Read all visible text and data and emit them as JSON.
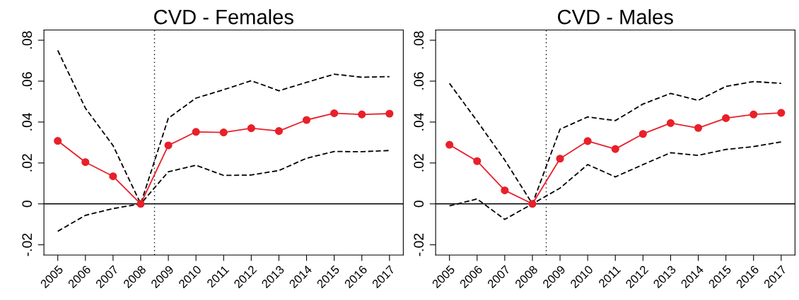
{
  "chart_data": [
    {
      "type": "line",
      "title": "CVD - Females",
      "x": [
        2005,
        2006,
        2007,
        2008,
        2009,
        2010,
        2011,
        2012,
        2013,
        2014,
        2015,
        2016,
        2017
      ],
      "xlim": [
        2004.5,
        2017.5
      ],
      "xticks": [
        2005,
        2006,
        2007,
        2008,
        2009,
        2010,
        2011,
        2012,
        2013,
        2014,
        2015,
        2016,
        2017
      ],
      "ylim": [
        -0.025,
        0.085
      ],
      "yticks": [
        {
          "value": -0.02,
          "label": "-.02"
        },
        0,
        {
          "value": 0.02,
          "label": ".02"
        },
        {
          "value": 0.04,
          "label": ".04"
        },
        {
          "value": 0.06,
          "label": ".06"
        },
        {
          "value": 0.08,
          "label": ".08"
        }
      ],
      "grid": false,
      "series": [
        {
          "color": "#000000",
          "line_style": "dashed",
          "marker": "none",
          "values": [
            0.075,
            0.0468,
            0.0285,
            0,
            0.0419,
            0.0517,
            0.0558,
            0.0602,
            0.0553,
            0.0594,
            0.0634,
            0.0619,
            0.0622
          ]
        },
        {
          "color": "#000000",
          "line_style": "dashed",
          "marker": "none",
          "values": [
            -0.0134,
            -0.0056,
            -0.0023,
            0,
            0.0157,
            0.0189,
            0.0139,
            0.0141,
            0.0163,
            0.0223,
            0.0256,
            0.0255,
            0.0261
          ]
        },
        {
          "color": "#e8202a",
          "line_style": "solid",
          "marker": "circle",
          "values": [
            0.0308,
            0.0204,
            0.0135,
            0,
            0.0286,
            0.0352,
            0.0349,
            0.037,
            0.0356,
            0.041,
            0.0443,
            0.0437,
            0.0441
          ]
        }
      ],
      "ref_lines": [
        {
          "axis": "y",
          "value": 0,
          "color": "#000000",
          "line_style": "solid"
        },
        {
          "axis": "x",
          "value": 2008.5,
          "color": "#000000",
          "line_style": "dotted"
        }
      ]
    },
    {
      "type": "line",
      "title": "CVD - Males",
      "x": [
        2005,
        2006,
        2007,
        2008,
        2009,
        2010,
        2011,
        2012,
        2013,
        2014,
        2015,
        2016,
        2017
      ],
      "xlim": [
        2004.5,
        2017.5
      ],
      "xticks": [
        2005,
        2006,
        2007,
        2008,
        2009,
        2010,
        2011,
        2012,
        2013,
        2014,
        2015,
        2016,
        2017
      ],
      "ylim": [
        -0.025,
        0.085
      ],
      "yticks": [
        {
          "value": -0.02,
          "label": "-.02"
        },
        0,
        {
          "value": 0.02,
          "label": ".02"
        },
        {
          "value": 0.04,
          "label": ".04"
        },
        {
          "value": 0.06,
          "label": ".06"
        },
        {
          "value": 0.08,
          "label": ".08"
        }
      ],
      "grid": false,
      "series": [
        {
          "color": "#000000",
          "line_style": "dashed",
          "marker": "none",
          "values": [
            0.0589,
            0.0405,
            0.0214,
            0,
            0.0365,
            0.0425,
            0.0407,
            0.0488,
            0.054,
            0.0506,
            0.0574,
            0.0598,
            0.0589
          ]
        },
        {
          "color": "#000000",
          "line_style": "dashed",
          "marker": "none",
          "values": [
            -0.001,
            0.0024,
            -0.0076,
            0,
            0.0077,
            0.0192,
            0.0132,
            0.0192,
            0.025,
            0.0237,
            0.0266,
            0.028,
            0.0303
          ]
        },
        {
          "color": "#e8202a",
          "line_style": "solid",
          "marker": "circle",
          "values": [
            0.0289,
            0.0209,
            0.0066,
            0,
            0.0221,
            0.0307,
            0.0268,
            0.0342,
            0.0395,
            0.0371,
            0.0419,
            0.0437,
            0.0445
          ]
        }
      ],
      "ref_lines": [
        {
          "axis": "y",
          "value": 0,
          "color": "#000000",
          "line_style": "solid"
        },
        {
          "axis": "x",
          "value": 2008.5,
          "color": "#000000",
          "line_style": "dotted"
        }
      ]
    }
  ]
}
